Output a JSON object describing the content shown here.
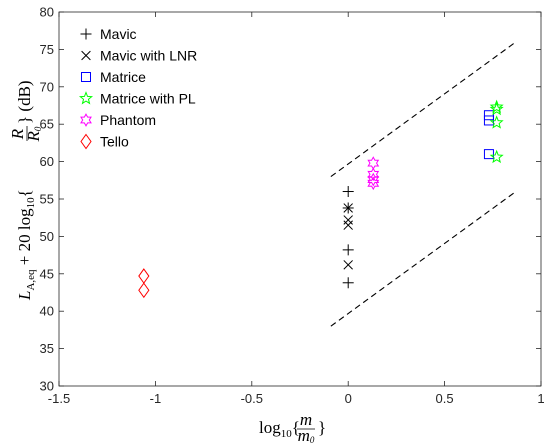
{
  "chart_data": {
    "type": "scatter",
    "title": "",
    "xlabel": "log10{m/m0}",
    "ylabel": "L_A,eq + 20 log10{R/R0} (dB)",
    "xlim": [
      -1.5,
      1
    ],
    "ylim": [
      30,
      80
    ],
    "xticks": [
      -1.5,
      -1,
      -0.5,
      0,
      0.5,
      1
    ],
    "yticks": [
      30,
      35,
      40,
      45,
      50,
      55,
      60,
      65,
      70,
      75,
      80
    ],
    "xtick_labels": [
      "-1.5",
      "-1",
      "-0.5",
      "0",
      "0.5",
      "1"
    ],
    "ytick_labels": [
      "30",
      "35",
      "40",
      "45",
      "50",
      "55",
      "60",
      "65",
      "70",
      "75",
      "80"
    ],
    "grid": false,
    "legend_position": "top-left",
    "series": [
      {
        "name": "Mavic",
        "marker": "plus",
        "color": "#000000",
        "points": [
          [
            0,
            56.0
          ],
          [
            0,
            53.8
          ],
          [
            0,
            48.2
          ],
          [
            0,
            43.8
          ]
        ]
      },
      {
        "name": "Mavic with LNR",
        "marker": "x",
        "color": "#000000",
        "points": [
          [
            0,
            53.8
          ],
          [
            0,
            52.2
          ],
          [
            0,
            51.5
          ],
          [
            0,
            46.2
          ]
        ]
      },
      {
        "name": "Matrice",
        "marker": "square",
        "color": "#0000ff",
        "points": [
          [
            0.73,
            66.2
          ],
          [
            0.73,
            65.5
          ],
          [
            0.73,
            61.0
          ]
        ]
      },
      {
        "name": "Matrice with PL",
        "marker": "pentagram",
        "color": "#00ff00",
        "points": [
          [
            0.77,
            67.3
          ],
          [
            0.77,
            67.0
          ],
          [
            0.77,
            65.2
          ],
          [
            0.77,
            60.6
          ]
        ]
      },
      {
        "name": "Phantom",
        "marker": "hexagram",
        "color": "#ff00ff",
        "points": [
          [
            0.13,
            59.8
          ],
          [
            0.13,
            58.3
          ],
          [
            0.13,
            57.6
          ],
          [
            0.13,
            57.1
          ]
        ]
      },
      {
        "name": "Tello",
        "marker": "diamond",
        "color": "#ff0000",
        "points": [
          [
            -1.06,
            44.7
          ],
          [
            -1.06,
            42.8
          ]
        ]
      }
    ],
    "reference_lines": [
      {
        "style": "dashed",
        "color": "#000000",
        "points": [
          [
            -0.09,
            58.0
          ],
          [
            0.87,
            76.0
          ]
        ]
      },
      {
        "style": "dashed",
        "color": "#000000",
        "points": [
          [
            -0.09,
            38.0
          ],
          [
            0.87,
            56.0
          ]
        ]
      }
    ]
  }
}
